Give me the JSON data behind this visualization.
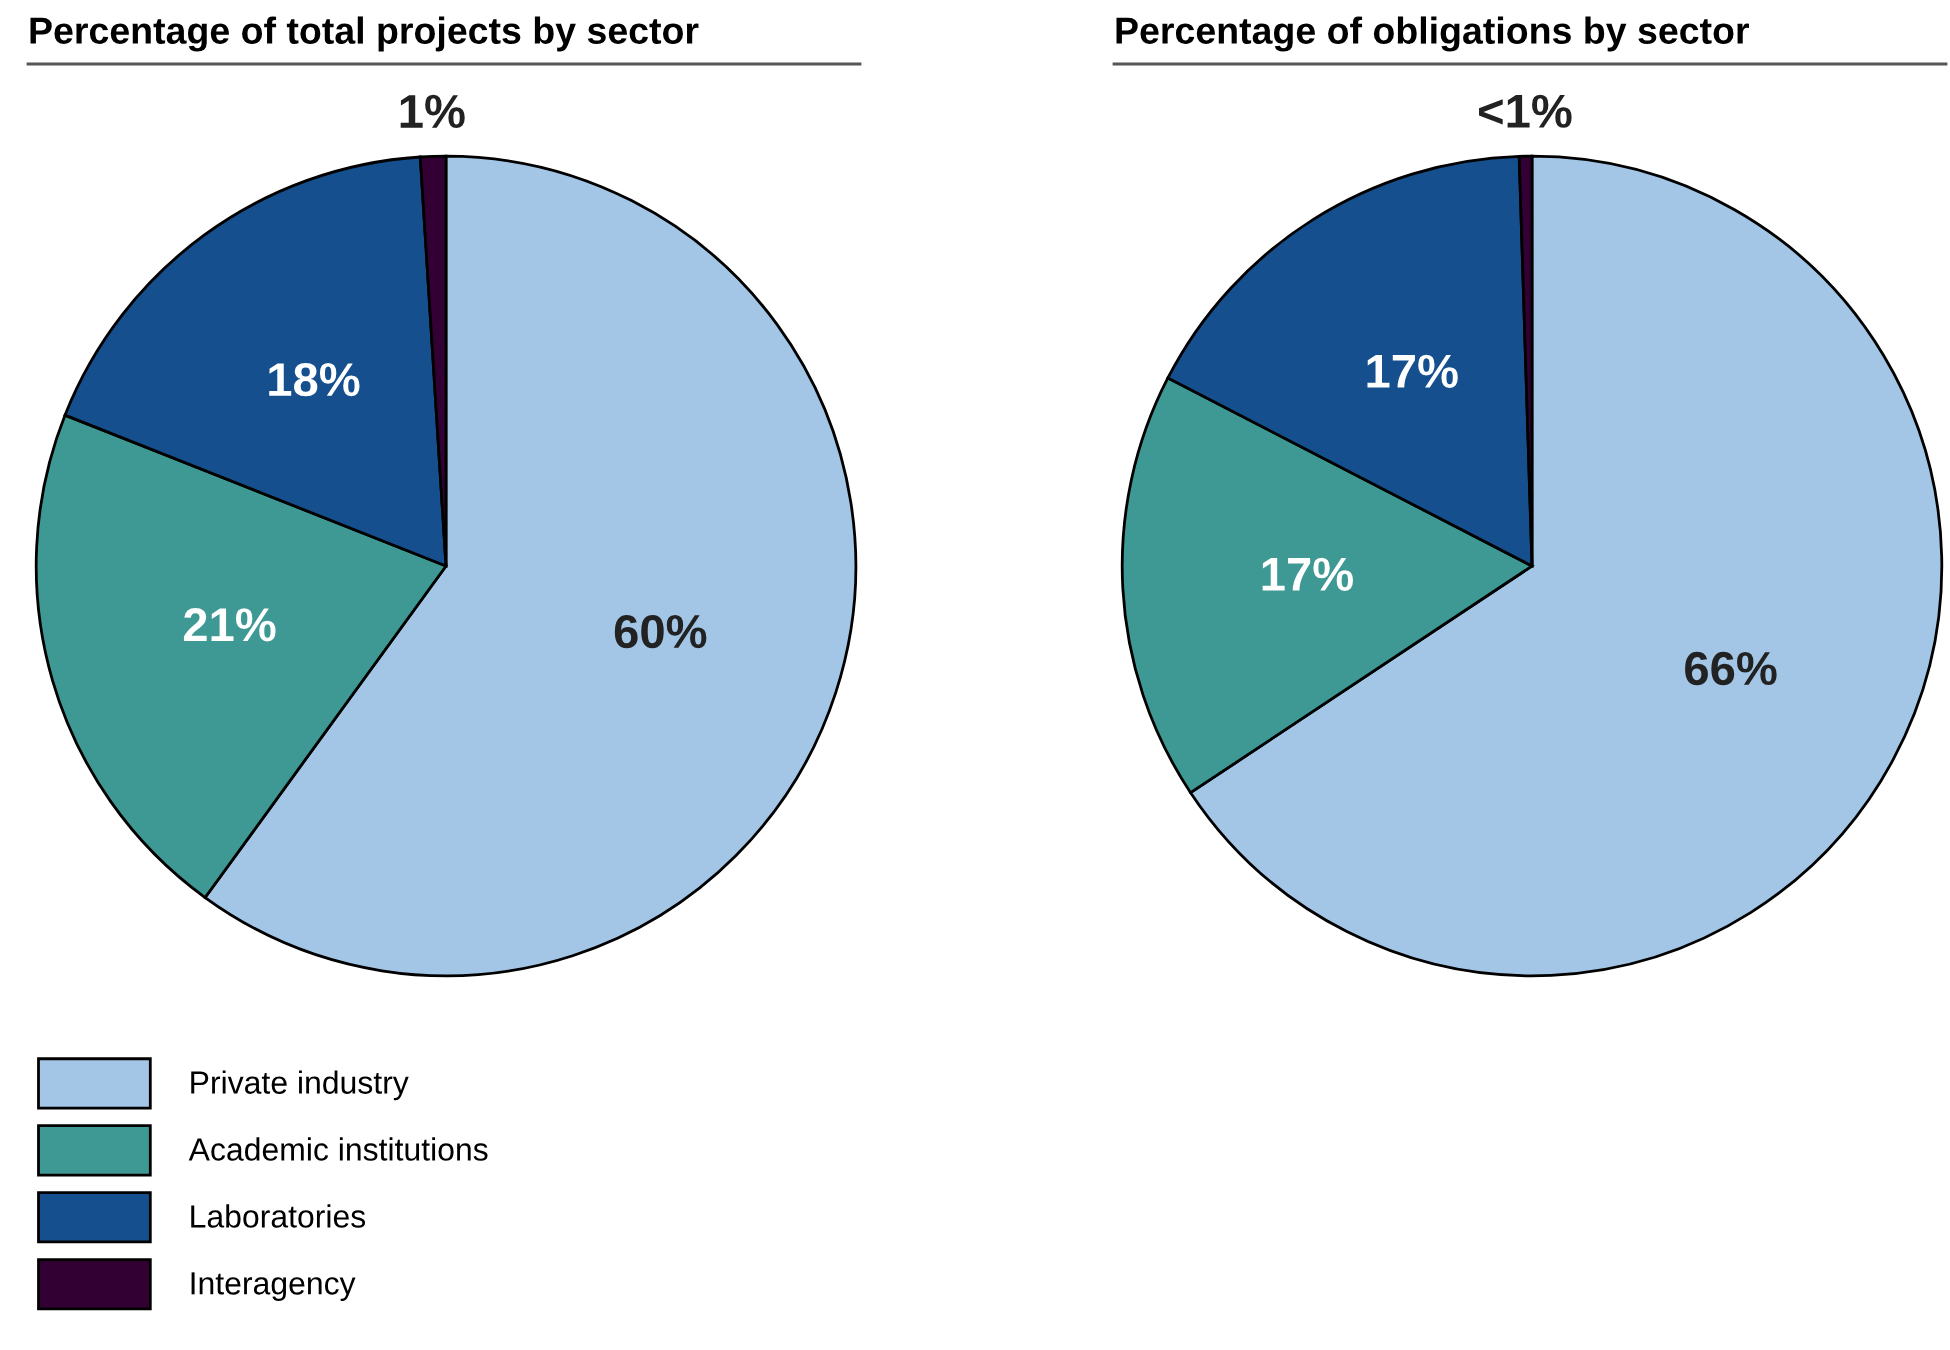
{
  "chart_data": [
    {
      "type": "pie",
      "title": "Percentage of total projects by sector",
      "categories": [
        "Private industry",
        "Academic institutions",
        "Laboratories",
        "Interagency"
      ],
      "values": [
        60,
        21,
        18,
        1
      ],
      "colors": [
        "#a3c6e6",
        "#3e9893",
        "#154f8d",
        "#330033"
      ],
      "value_labels": [
        "60%",
        "21%",
        "18%",
        "1%"
      ],
      "legend": "bottom left"
    },
    {
      "type": "pie",
      "title": "Percentage of obligations by sector",
      "categories": [
        null,
        null,
        null,
        null
      ],
      "values": [
        66,
        17,
        17,
        0.5
      ],
      "colors": [
        "#a3c6e6",
        "#3e9893",
        "#154f8d",
        "#330033"
      ],
      "value_labels": [
        "66%",
        "17%",
        "17%",
        "<1%"
      ]
    }
  ]
}
